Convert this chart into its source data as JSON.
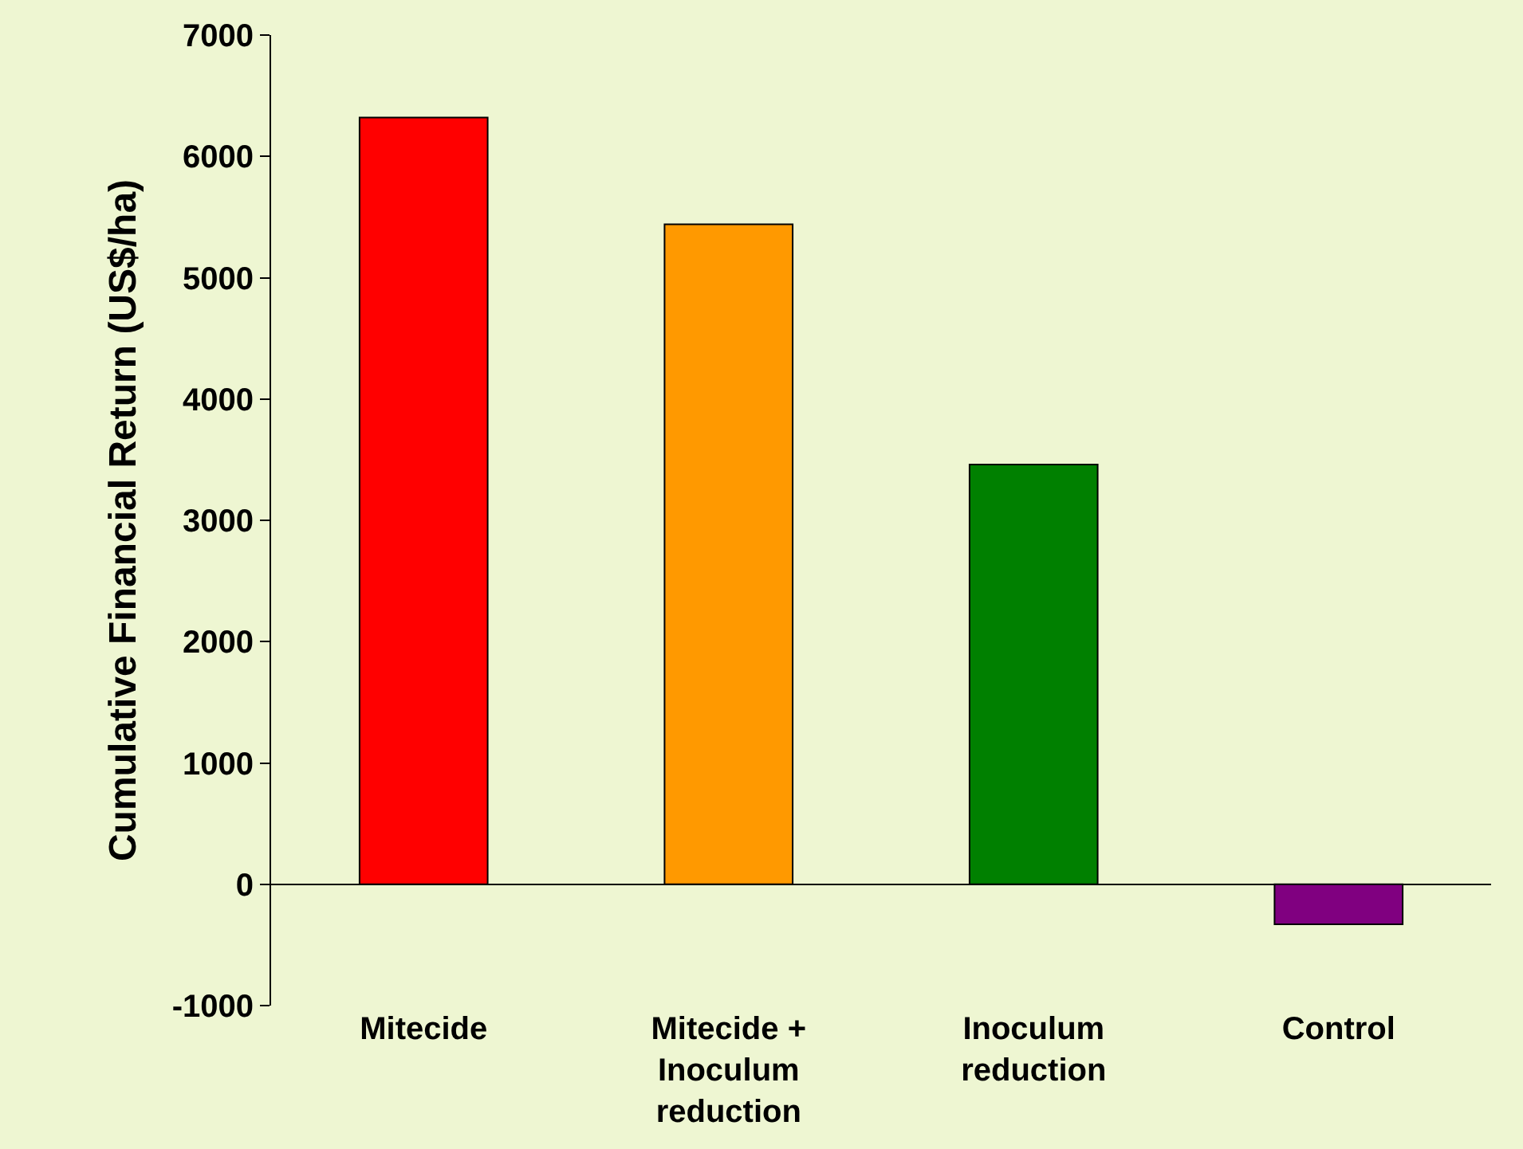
{
  "chart_data": {
    "type": "bar",
    "ylabel": "Cumulative Financial Return (US$/ha)",
    "categories": [
      "Mitecide",
      "Mitecide + Inoculum reduction",
      "Inoculum reduction",
      "Control"
    ],
    "values": [
      6320,
      5440,
      3460,
      -330
    ],
    "colors": [
      "#ff0000",
      "#ff9900",
      "#008000",
      "#800080"
    ],
    "ylim": [
      -1000,
      7000
    ],
    "yticks": [
      -1000,
      0,
      1000,
      2000,
      3000,
      4000,
      5000,
      6000,
      7000
    ]
  }
}
